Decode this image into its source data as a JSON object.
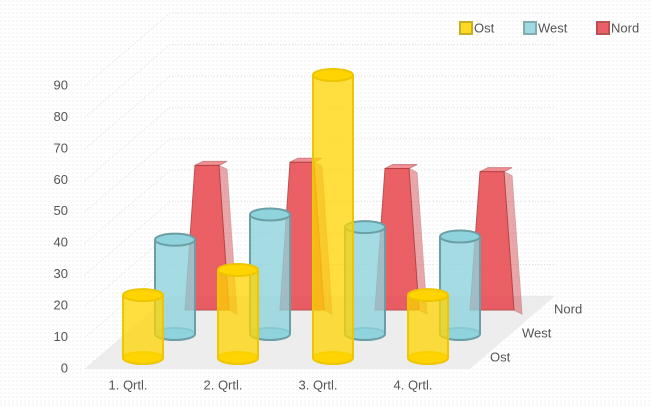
{
  "chart_data": {
    "type": "bar3d",
    "categories": [
      "1. Qrtl.",
      "2. Qrtl.",
      "3. Qrtl.",
      "4. Qrtl."
    ],
    "series": [
      {
        "name": "Ost",
        "color": "#ffd400",
        "values": [
          20,
          28,
          90,
          20
        ]
      },
      {
        "name": "West",
        "color": "#8fd3dc",
        "values": [
          30,
          38,
          34,
          31
        ]
      },
      {
        "name": "Nord",
        "color": "#e8454b",
        "values": [
          46,
          47,
          45,
          44
        ]
      }
    ],
    "ylim": [
      0,
      90
    ],
    "yticks": [
      0,
      10,
      20,
      30,
      40,
      50,
      60,
      70,
      80,
      90
    ],
    "grid": true,
    "legend": "top-right"
  }
}
